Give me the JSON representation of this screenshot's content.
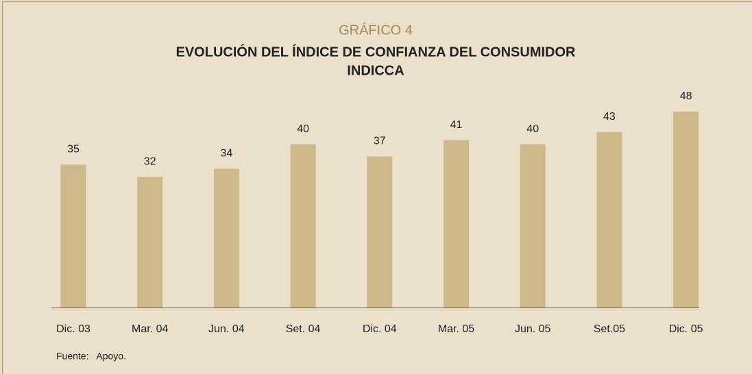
{
  "chart_data": {
    "type": "bar",
    "supertitle": "GRÁFICO 4",
    "title": [
      "EVOLUCIÓN DEL ÍNDICE DE CONFIANZA DEL CONSUMIDOR",
      "INDICCA"
    ],
    "categories": [
      "Dic. 03",
      "Mar. 04",
      "Jun. 04",
      "Set. 04",
      "Dic. 04",
      "Mar. 05",
      "Jun. 05",
      "Set.05",
      "Dic. 05"
    ],
    "values": [
      35,
      32,
      34,
      40,
      37,
      41,
      40,
      43,
      48
    ],
    "color": "#cdb98a",
    "source": "Fuente:   Apoyo."
  }
}
